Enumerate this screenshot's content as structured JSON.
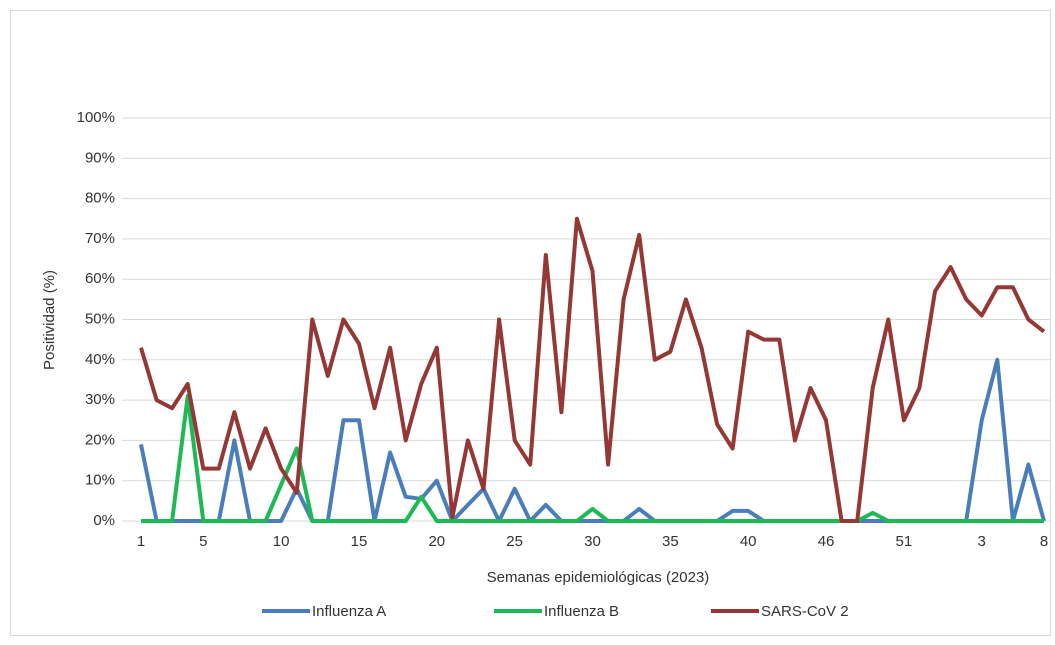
{
  "chart_data": {
    "type": "line",
    "x_label": "Semanas epidemiológicas (2023)",
    "y_label": "Positividad (%)",
    "categories": [
      "1",
      null,
      null,
      null,
      "5",
      null,
      null,
      null,
      null,
      "10",
      null,
      null,
      null,
      null,
      "15",
      null,
      null,
      null,
      null,
      "20",
      null,
      null,
      null,
      null,
      "25",
      null,
      null,
      null,
      null,
      "30",
      null,
      null,
      null,
      null,
      "35",
      null,
      null,
      null,
      null,
      "40",
      null,
      null,
      null,
      null,
      "46",
      null,
      null,
      null,
      null,
      "51",
      null,
      null,
      null,
      null,
      "3",
      null,
      null,
      null,
      "8"
    ],
    "series": [
      {
        "name": "Influenza A",
        "color": "#4a7ebb",
        "values": [
          19,
          0,
          0,
          0,
          0,
          0,
          20,
          0,
          0,
          0,
          8,
          0,
          0,
          25,
          25,
          0,
          17,
          6,
          5.5,
          10,
          0,
          4,
          8,
          0,
          8,
          0,
          4,
          0,
          0,
          0,
          0,
          0,
          3,
          0,
          0,
          0,
          0,
          0,
          2.5,
          2.5,
          0,
          0,
          0,
          0,
          0,
          0,
          0,
          0,
          0,
          0,
          0,
          0,
          0,
          0,
          25,
          40,
          0,
          14,
          0
        ]
      },
      {
        "name": "Influenza B",
        "color": "#1db954",
        "values": [
          0,
          0,
          0,
          31,
          0,
          0,
          0,
          0,
          0,
          9,
          18,
          0,
          0,
          0,
          0,
          0,
          0,
          0,
          6,
          0,
          0,
          0,
          0,
          0,
          0,
          0,
          0,
          0,
          0,
          3,
          0,
          0,
          0,
          0,
          0,
          0,
          0,
          0,
          0,
          0,
          0,
          0,
          0,
          0,
          0,
          0,
          0,
          2,
          0,
          0,
          0,
          0,
          0,
          0,
          0,
          0,
          0,
          0,
          0
        ]
      },
      {
        "name": "SARS-CoV 2",
        "color": "#953735",
        "values": [
          43,
          30,
          28,
          34,
          13,
          13,
          27,
          13,
          23,
          13,
          7,
          50,
          36,
          50,
          44,
          28,
          43,
          20,
          34,
          43,
          1,
          20,
          8,
          50,
          20,
          14,
          66,
          27,
          75,
          62,
          14,
          55,
          71,
          40,
          42,
          55,
          43,
          24,
          18,
          47,
          45,
          45,
          20,
          33,
          25,
          0,
          0,
          33,
          50,
          25,
          33,
          57,
          63,
          55,
          51,
          58,
          58,
          50,
          47
        ]
      }
    ],
    "ylim": [
      0,
      100
    ],
    "yticks": [
      {
        "value": 0,
        "label": "0%"
      },
      {
        "value": 10,
        "label": "10%"
      },
      {
        "value": 20,
        "label": "20%"
      },
      {
        "value": 30,
        "label": "30%"
      },
      {
        "value": 40,
        "label": "40%"
      },
      {
        "value": 50,
        "label": "50%"
      },
      {
        "value": 60,
        "label": "60%"
      },
      {
        "value": 70,
        "label": "70%"
      },
      {
        "value": 80,
        "label": "80%"
      },
      {
        "value": 90,
        "label": "90%"
      },
      {
        "value": 100,
        "label": "100%"
      }
    ],
    "grid": true
  }
}
